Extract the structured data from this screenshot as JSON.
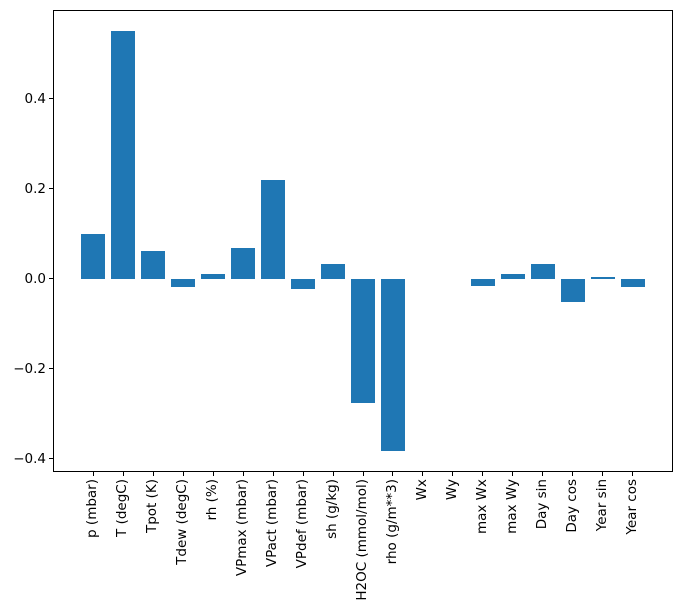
{
  "figure": {
    "background": "#ffffff",
    "spine_color": "#000000",
    "tick_color": "#000000",
    "text_color": "#000000"
  },
  "chart_data": {
    "type": "bar",
    "title": "",
    "xlabel": "",
    "ylabel": "",
    "categories": [
      "p (mbar)",
      "T (degC)",
      "Tpot (K)",
      "Tdew (degC)",
      "rh (%)",
      "VPmax (mbar)",
      "VPact (mbar)",
      "VPdef (mbar)",
      "sh (g/kg)",
      "H2OC (mmol/mol)",
      "rho (g/m**3)",
      "Wx",
      "Wy",
      "max Wx",
      "max Wy",
      "Day sin",
      "Day cos",
      "Year sin",
      "Year cos"
    ],
    "values": [
      0.099,
      0.55,
      0.062,
      -0.018,
      0.011,
      0.068,
      0.218,
      -0.024,
      0.033,
      -0.276,
      -0.383,
      0.0,
      0.0,
      -0.016,
      0.011,
      0.033,
      -0.053,
      0.003,
      -0.018
    ],
    "bar_color": "#1f77b4",
    "bar_width": 0.8,
    "yticks": [
      0.4,
      0.2,
      0.0,
      -0.2,
      -0.4
    ],
    "ytick_labels": [
      "0.4",
      "0.2",
      "0.0",
      "−0.2",
      "−0.4"
    ],
    "ylim": [
      -0.43,
      0.597
    ],
    "xlim": [
      -1.34,
      19.34
    ],
    "grid": false,
    "legend": false
  }
}
